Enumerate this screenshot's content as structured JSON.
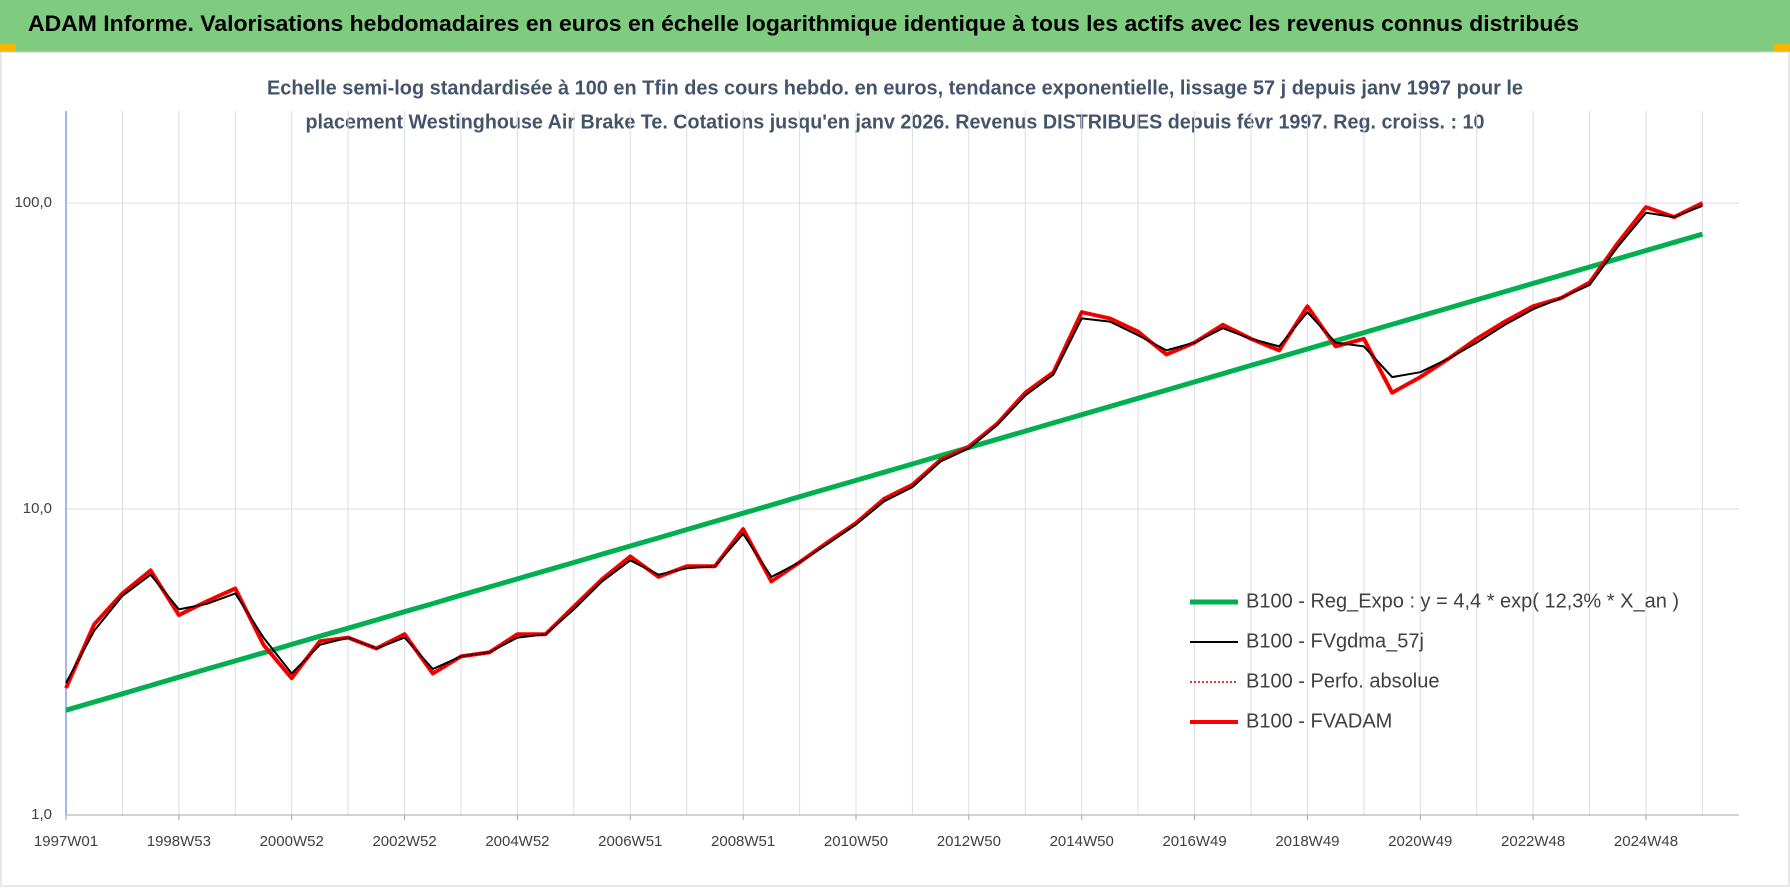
{
  "chart_data": {
    "type": "line",
    "title": "ADAM Informe. Valorisations hebdomadaires en euros en échelle logarithmique identique à tous les actifs avec les revenus connus distribués",
    "subtitle": [
      "Echelle semi-log standardisée à 100 en Tfin des cours hebdo. en euros, tendance exponentielle, lissage 57 j depuis janv 1997 pour le",
      "placement Westinghouse Air Brake Te. Cotations jusqu'en janv 2026. Revenus DISTRIBUES depuis févr 1997. Reg. croiss. : 10"
    ],
    "categories": [
      "1997W01",
      null,
      null,
      null,
      "1998W53",
      null,
      null,
      null,
      "2000W52",
      null,
      null,
      null,
      "2002W52",
      null,
      null,
      null,
      "2004W52",
      null,
      null,
      null,
      "2006W51",
      null,
      null,
      null,
      "2008W51",
      null,
      null,
      null,
      "2010W50",
      null,
      null,
      null,
      "2012W50",
      null,
      null,
      null,
      "2014W50",
      null,
      null,
      null,
      "2016W49",
      null,
      null,
      null,
      "2018W49",
      null,
      null,
      null,
      "2020W49",
      null,
      null,
      null,
      "2022W48",
      null,
      null,
      null,
      "2024W48",
      null,
      null
    ],
    "log_scale": true,
    "grid": true,
    "legend": "right",
    "ylim": [
      1,
      200
    ],
    "yticks": [
      {
        "value": 1,
        "label": "1,0"
      },
      {
        "value": 10,
        "label": "10,0"
      },
      {
        "value": 100,
        "label": "100,0"
      }
    ],
    "series": [
      {
        "name": "B100 - Reg_Expo : y = 4,4 * exp( 12,3% *  X_an )",
        "color": "#00b050",
        "width": 5,
        "dash": "none",
        "values": [
          2.2,
          2.34,
          2.49,
          2.65,
          2.82,
          3.0,
          3.19,
          3.39,
          3.61,
          3.84,
          4.08,
          4.34,
          4.62,
          4.91,
          5.23,
          5.56,
          5.91,
          6.29,
          6.69,
          7.12,
          7.57,
          8.05,
          8.57,
          9.11,
          9.69,
          10.31,
          10.97,
          11.67,
          12.41,
          13.2,
          14.04,
          14.94,
          15.89,
          16.9,
          17.98,
          19.12,
          20.34,
          21.64,
          23.02,
          24.48,
          26.04,
          27.7,
          29.47,
          31.35,
          33.34,
          35.47,
          37.73,
          40.13,
          42.69,
          45.41,
          48.3,
          51.38,
          54.65,
          58.14,
          61.84,
          65.78,
          69.97,
          74.43,
          79.17
        ]
      },
      {
        "name": "B100 - FVgdma_57j",
        "color": "#000000",
        "width": 2,
        "dash": "none",
        "values": [
          2.7,
          4.0,
          5.2,
          6.1,
          4.7,
          4.9,
          5.3,
          3.8,
          2.9,
          3.6,
          3.8,
          3.5,
          3.8,
          3.0,
          3.3,
          3.4,
          3.8,
          3.9,
          4.7,
          5.8,
          6.8,
          6.1,
          6.4,
          6.5,
          8.3,
          6.0,
          6.7,
          7.7,
          8.9,
          10.6,
          11.8,
          14.3,
          15.8,
          18.8,
          23.5,
          27.5,
          42,
          41,
          37,
          33,
          35,
          39,
          36,
          34,
          44,
          35,
          34,
          27,
          28,
          31,
          35,
          40,
          45,
          49,
          54,
          72,
          93,
          90,
          98
        ]
      },
      {
        "name": "B100 - Perfo. absolue",
        "color": "#c00000",
        "width": 1.5,
        "dash": "2 2",
        "values": [
          2.6,
          4.2,
          5.3,
          6.3,
          4.5,
          5.0,
          5.5,
          3.6,
          2.8,
          3.7,
          3.8,
          3.5,
          3.9,
          2.9,
          3.3,
          3.4,
          3.9,
          3.9,
          4.8,
          5.9,
          7.0,
          6.0,
          6.5,
          6.5,
          8.6,
          5.8,
          6.7,
          7.8,
          9.0,
          10.8,
          12.0,
          14.5,
          16.0,
          19.0,
          24,
          28,
          44,
          42,
          38,
          32,
          35,
          40,
          36,
          33,
          46,
          34,
          36,
          24,
          27,
          31,
          36,
          41,
          46,
          49,
          55,
          74,
          97,
          90,
          100
        ]
      },
      {
        "name": "B100 - FVADAM",
        "color": "#ff0000",
        "width": 4,
        "dash": "none",
        "values": [
          2.6,
          4.2,
          5.3,
          6.3,
          4.5,
          5.0,
          5.5,
          3.6,
          2.8,
          3.7,
          3.8,
          3.5,
          3.9,
          2.9,
          3.3,
          3.4,
          3.9,
          3.9,
          4.8,
          5.9,
          7.0,
          6.0,
          6.5,
          6.5,
          8.6,
          5.8,
          6.7,
          7.8,
          9.0,
          10.8,
          12.0,
          14.5,
          16.0,
          19.0,
          24,
          28,
          44,
          42,
          38,
          32,
          35,
          40,
          36,
          33,
          46,
          34,
          36,
          24,
          27,
          31,
          36,
          41,
          46,
          49,
          55,
          74,
          97,
          90,
          100
        ]
      }
    ]
  }
}
